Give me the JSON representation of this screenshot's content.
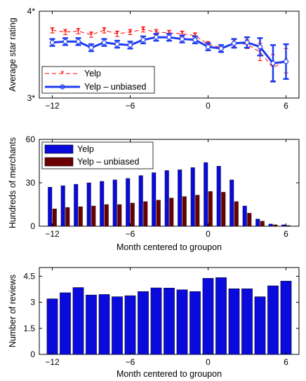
{
  "colors": {
    "yelp_red": "#ff0000",
    "unbiased_blue": "#1f3df0",
    "bar_blue": "#0a0adc",
    "bar_dark_red": "#6b0000",
    "axis": "#000000"
  },
  "chart_data": [
    {
      "type": "line",
      "xlim": [
        -13,
        7
      ],
      "ylim": [
        3,
        4
      ],
      "xticks": [
        -12,
        -6,
        0,
        6
      ],
      "xtick_labels": [
        "−12",
        "−6",
        "0",
        "6"
      ],
      "yticks": [
        3,
        4
      ],
      "ytick_labels": [
        "3*",
        "4*"
      ],
      "ylabel": "Average star rating",
      "xlabel": "",
      "legend_position": "lower-left",
      "x": [
        -12,
        -11,
        -10,
        -9,
        -8,
        -7,
        -6,
        -5,
        -4,
        -3,
        -2,
        -1,
        0,
        1,
        2,
        3,
        4,
        5,
        6
      ],
      "series": [
        {
          "name": "Yelp",
          "color": "#ff0000",
          "style": "dashed-star",
          "values": [
            3.78,
            3.76,
            3.77,
            3.73,
            3.78,
            3.74,
            3.76,
            3.79,
            3.76,
            3.75,
            3.74,
            3.72,
            3.62,
            3.58,
            3.63,
            3.62,
            3.53,
            3.35,
            3.43
          ],
          "errors": [
            0.03,
            0.03,
            0.03,
            0.03,
            0.03,
            0.03,
            0.03,
            0.03,
            0.03,
            0.03,
            0.03,
            0.03,
            0.03,
            0.03,
            0.04,
            0.05,
            0.1,
            0.15,
            0.14
          ]
        },
        {
          "name": "Yelp – unbiased",
          "color": "#1f3df0",
          "style": "solid-circle",
          "values": [
            3.64,
            3.65,
            3.65,
            3.58,
            3.64,
            3.62,
            3.61,
            3.67,
            3.7,
            3.7,
            3.68,
            3.67,
            3.59,
            3.57,
            3.63,
            3.64,
            3.59,
            3.4,
            3.42
          ],
          "errors": [
            0.04,
            0.04,
            0.04,
            0.04,
            0.04,
            0.04,
            0.04,
            0.04,
            0.04,
            0.04,
            0.04,
            0.04,
            0.04,
            0.04,
            0.05,
            0.06,
            0.1,
            0.21,
            0.2
          ]
        }
      ]
    },
    {
      "type": "bar",
      "xlim": [
        -13,
        7
      ],
      "ylim": [
        0,
        60
      ],
      "xticks": [
        -12,
        -6,
        0,
        6
      ],
      "xtick_labels": [
        "−12",
        "−6",
        "0",
        "6"
      ],
      "yticks": [
        0,
        30,
        60
      ],
      "ytick_labels": [
        "0",
        "30",
        "60"
      ],
      "ylabel": "Hundreds of merchants",
      "xlabel": "Month centered to groupon",
      "legend_position": "top-left",
      "x": [
        -12,
        -11,
        -10,
        -9,
        -8,
        -7,
        -6,
        -5,
        -4,
        -3,
        -2,
        -1,
        0,
        1,
        2,
        3,
        4,
        5,
        6
      ],
      "series": [
        {
          "name": "Yelp",
          "color": "#0a0adc",
          "values": [
            27,
            28,
            29,
            30,
            31,
            32,
            33,
            35,
            37,
            38.5,
            39,
            40.5,
            44,
            41.5,
            32,
            14,
            5,
            1.5,
            1
          ]
        },
        {
          "name": "Yelp – unbiased",
          "color": "#6b0000",
          "values": [
            12,
            13,
            13.5,
            14,
            15,
            15,
            16,
            17,
            18,
            19.5,
            20.5,
            21.5,
            24,
            23.5,
            17,
            9,
            3.5,
            1,
            0.5
          ]
        }
      ]
    },
    {
      "type": "bar",
      "xlim": [
        -13,
        7
      ],
      "ylim": [
        0,
        5
      ],
      "xticks": [
        -12,
        -6,
        0,
        6
      ],
      "xtick_labels": [
        "−12",
        "−6",
        "0",
        "6"
      ],
      "yticks": [
        0,
        1.5,
        3,
        4.5
      ],
      "ytick_labels": [
        "0",
        "1.5",
        "3",
        "4.5"
      ],
      "ylabel": "Number of reviews",
      "xlabel": "Month centered to groupon",
      "x": [
        -12,
        -11,
        -10,
        -9,
        -8,
        -7,
        -6,
        -5,
        -4,
        -3,
        -2,
        -1,
        0,
        1,
        2,
        3,
        4,
        5,
        6
      ],
      "series": [
        {
          "color": "#0a0adc",
          "values": [
            3.2,
            3.55,
            3.85,
            3.42,
            3.45,
            3.32,
            3.38,
            3.62,
            3.83,
            3.82,
            3.72,
            3.62,
            4.38,
            4.42,
            3.78,
            3.78,
            3.32,
            3.95,
            4.22
          ]
        }
      ]
    }
  ]
}
